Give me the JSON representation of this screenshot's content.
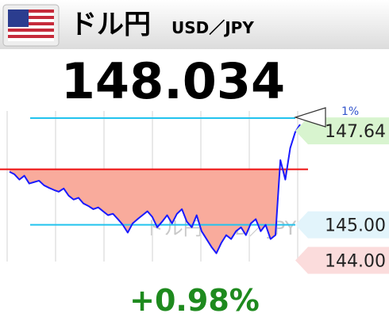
{
  "chart_data": {
    "type": "line",
    "title": "ドル円",
    "subtitle": "USD／JPY",
    "price": "148.034",
    "change": "+0.98%",
    "watermark": "ドル円 USD／JPY",
    "series": [
      {
        "name": "ドル円",
        "color": "#1a1aff",
        "values": [
          146.49,
          146.42,
          146.27,
          146.38,
          146.16,
          146.2,
          146.24,
          146.11,
          146.04,
          145.98,
          145.93,
          146.02,
          145.82,
          145.71,
          145.76,
          145.6,
          145.53,
          145.44,
          145.49,
          145.38,
          145.27,
          145.31,
          145.16,
          145.0,
          144.78,
          145.04,
          145.16,
          145.27,
          145.38,
          145.22,
          144.93,
          145.09,
          145.27,
          145.04,
          145.31,
          145.44,
          145.09,
          144.93,
          145.27,
          144.82,
          144.6,
          144.38,
          144.2,
          144.49,
          144.71,
          144.6,
          144.82,
          144.93,
          144.71,
          145.04,
          145.16,
          144.82,
          145.0,
          144.6,
          144.71,
          146.82,
          146.27,
          147.16,
          147.6,
          147.82
        ]
      }
    ],
    "ylim": [
      143.9,
      148.2
    ],
    "yticks": [
      147.64,
      {
        "value": 145,
        "label": "145.00"
      },
      {
        "value": 144,
        "label": "144.00"
      }
    ],
    "tick_colors": [
      "#d8f4cf",
      "#e2f4fb",
      "#fbdcdc"
    ],
    "baseline": {
      "value": 146.56,
      "color": "#ee1111",
      "fill": "#f9ab9c"
    },
    "ref_lines": [
      {
        "value": 148,
        "color": "#22c3ee",
        "label": "1%"
      },
      {
        "value": 145,
        "color": "#22c3ee"
      }
    ],
    "vertical_grid_lines": 7
  }
}
